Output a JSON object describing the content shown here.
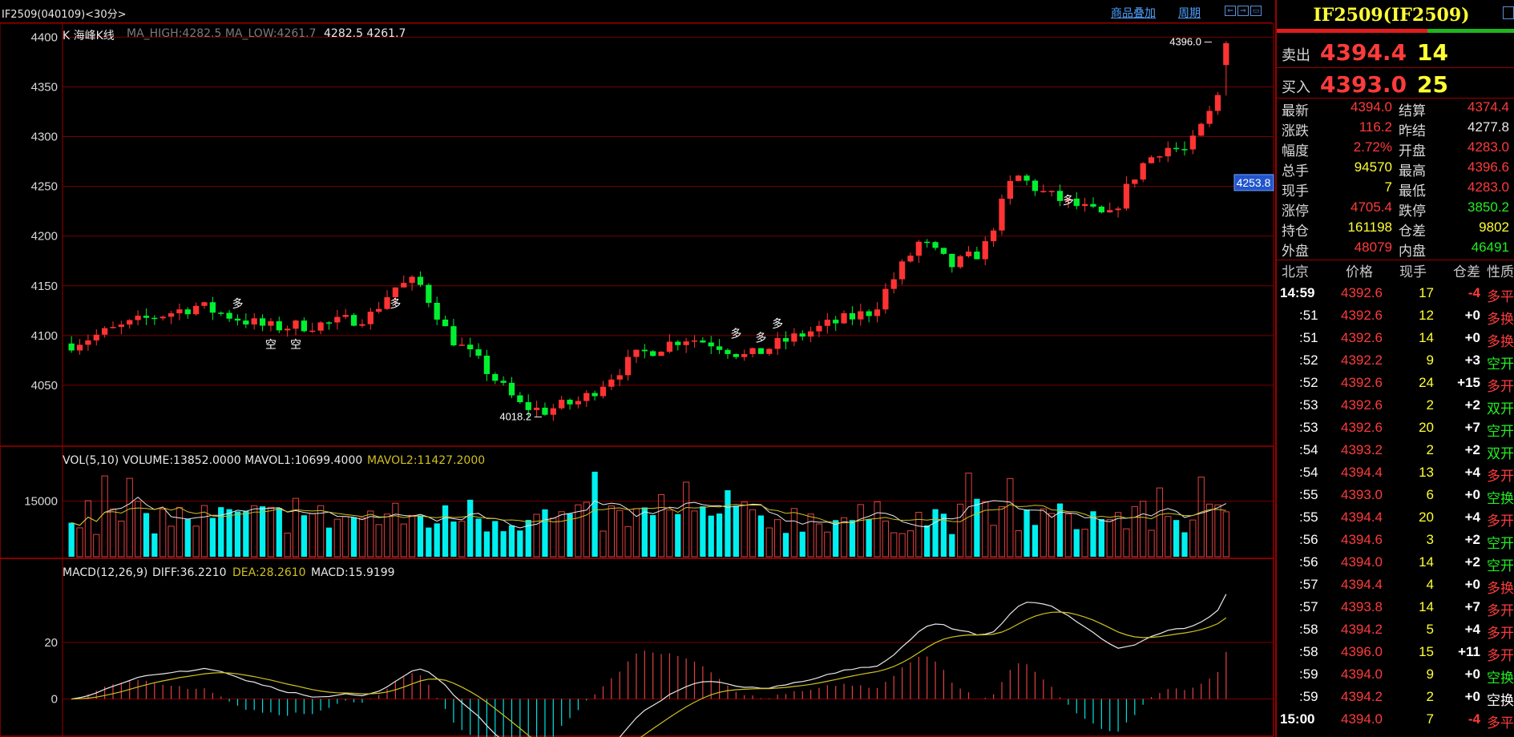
{
  "window": {
    "title": "IF2509(040109)<30分>",
    "links": [
      "商品叠加",
      "周期"
    ],
    "nav_icons": [
      "arrow-left-icon",
      "arrow-right-icon",
      "layout-icon"
    ]
  },
  "chart": {
    "ma_label": "K  海峰K线",
    "ma_values": "MA_HIGH:4282.5 MA_LOW:4261.7",
    "ma_nums": "4282.5 4261.7",
    "y_ticks": [
      "4400",
      "4350",
      "4300",
      "4250",
      "4200",
      "4150",
      "4100",
      "4050"
    ],
    "high_label": "4396.0",
    "low_label": "4018.2",
    "current_price_tag": "4253.8",
    "signals": [
      "多",
      "空",
      "空",
      "多",
      "多",
      "多",
      "多",
      "多"
    ],
    "vol_label": "VOL(5,10) VOLUME:13852.0000 MAVOL1:10699.4000",
    "vol_ma2": "MAVOL2:11427.2000",
    "vol_ticks": [
      "15000"
    ],
    "macd_label": "MACD(12,26,9)",
    "macd_diff": "DIFF:36.2210",
    "macd_dea": "DEA:28.2610",
    "macd_val": "MACD:15.9199",
    "macd_ticks": [
      "20",
      "0"
    ],
    "colors": {
      "up": "#ff3333",
      "down": "#00f0f0",
      "ma_high": "#e8e8e8",
      "ma_low": "#d0c020",
      "grid": "#7a0000"
    }
  },
  "chart_data": {
    "type": "candlestick",
    "price_axis": {
      "ylim": [
        4000,
        4410
      ],
      "ticks": [
        4050,
        4100,
        4150,
        4200,
        4250,
        4300,
        4350,
        4400
      ]
    },
    "volume_axis": {
      "ticks": [
        15000
      ]
    },
    "macd_axis": {
      "ticks": [
        0,
        20
      ]
    },
    "annotations": {
      "high": 4396.0,
      "low": 4018.2,
      "current": 4253.8
    }
  },
  "quote": {
    "symbol": "IF2509(IF2509)",
    "sell_label": "卖出",
    "sell_price": "4394.4",
    "sell_vol": "14",
    "buy_label": "买入",
    "buy_price": "4393.0",
    "buy_vol": "25",
    "stats": [
      {
        "l1": "最新",
        "v1": "4394.0",
        "c1": "#ff3b3b",
        "l2": "结算",
        "v2": "4374.4",
        "c2": "#ff3b3b"
      },
      {
        "l1": "涨跌",
        "v1": "116.2",
        "c1": "#ff3b3b",
        "l2": "昨结",
        "v2": "4277.8",
        "c2": "#e8e8e8"
      },
      {
        "l1": "幅度",
        "v1": "2.72%",
        "c1": "#ff3b3b",
        "l2": "开盘",
        "v2": "4283.0",
        "c2": "#ff3b3b"
      },
      {
        "l1": "总手",
        "v1": "94570",
        "c1": "#ffff33",
        "l2": "最高",
        "v2": "4396.6",
        "c2": "#ff3b3b"
      },
      {
        "l1": "现手",
        "v1": "7",
        "c1": "#ffff33",
        "l2": "最低",
        "v2": "4283.0",
        "c2": "#ff3b3b"
      },
      {
        "l1": "涨停",
        "v1": "4705.4",
        "c1": "#ff3b3b",
        "l2": "跌停",
        "v2": "3850.2",
        "c2": "#22ee22"
      },
      {
        "l1": "持仓",
        "v1": "161198",
        "c1": "#ffff33",
        "l2": "仓差",
        "v2": "9802",
        "c2": "#ffff33"
      },
      {
        "l1": "外盘",
        "v1": "48079",
        "c1": "#ff3b3b",
        "l2": "内盘",
        "v2": "46491",
        "c2": "#22ee22"
      }
    ],
    "tick_headers": [
      "北京",
      "价格",
      "现手",
      "仓差",
      "性质"
    ],
    "ticks": [
      {
        "t": "14:59",
        "p": "4392.6",
        "v": "17",
        "d": "-4",
        "n": "多平",
        "dc": "#ff3b3b",
        "nc": "#ff3b3b"
      },
      {
        "t": ":51",
        "p": "4392.6",
        "v": "12",
        "d": "+0",
        "n": "多换",
        "dc": "#ffffff",
        "nc": "#ff3b3b"
      },
      {
        "t": ":51",
        "p": "4392.6",
        "v": "14",
        "d": "+0",
        "n": "多换",
        "dc": "#ffffff",
        "nc": "#ff3b3b"
      },
      {
        "t": ":52",
        "p": "4392.2",
        "v": "9",
        "d": "+3",
        "n": "空开",
        "dc": "#ffffff",
        "nc": "#22ee22"
      },
      {
        "t": ":52",
        "p": "4392.6",
        "v": "24",
        "d": "+15",
        "n": "多开",
        "dc": "#ffffff",
        "nc": "#ff3b3b"
      },
      {
        "t": ":53",
        "p": "4392.6",
        "v": "2",
        "d": "+2",
        "n": "双开",
        "dc": "#ffffff",
        "nc": "#22ee22"
      },
      {
        "t": ":53",
        "p": "4392.6",
        "v": "20",
        "d": "+7",
        "n": "空开",
        "dc": "#ffffff",
        "nc": "#22ee22"
      },
      {
        "t": ":54",
        "p": "4393.2",
        "v": "2",
        "d": "+2",
        "n": "双开",
        "dc": "#ffffff",
        "nc": "#22ee22"
      },
      {
        "t": ":54",
        "p": "4394.4",
        "v": "13",
        "d": "+4",
        "n": "多开",
        "dc": "#ffffff",
        "nc": "#ff3b3b"
      },
      {
        "t": ":55",
        "p": "4393.0",
        "v": "6",
        "d": "+0",
        "n": "空换",
        "dc": "#ffffff",
        "nc": "#22ee22"
      },
      {
        "t": ":55",
        "p": "4394.4",
        "v": "20",
        "d": "+4",
        "n": "多开",
        "dc": "#ffffff",
        "nc": "#ff3b3b"
      },
      {
        "t": ":56",
        "p": "4394.6",
        "v": "3",
        "d": "+2",
        "n": "空开",
        "dc": "#ffffff",
        "nc": "#22ee22"
      },
      {
        "t": ":56",
        "p": "4394.0",
        "v": "14",
        "d": "+2",
        "n": "空开",
        "dc": "#ffffff",
        "nc": "#22ee22"
      },
      {
        "t": ":57",
        "p": "4394.4",
        "v": "4",
        "d": "+0",
        "n": "多换",
        "dc": "#ffffff",
        "nc": "#ff3b3b"
      },
      {
        "t": ":57",
        "p": "4393.8",
        "v": "14",
        "d": "+7",
        "n": "多开",
        "dc": "#ffffff",
        "nc": "#ff3b3b"
      },
      {
        "t": ":58",
        "p": "4394.2",
        "v": "5",
        "d": "+4",
        "n": "多开",
        "dc": "#ffffff",
        "nc": "#ff3b3b"
      },
      {
        "t": ":58",
        "p": "4396.0",
        "v": "15",
        "d": "+11",
        "n": "多开",
        "dc": "#ffffff",
        "nc": "#ff3b3b"
      },
      {
        "t": ":59",
        "p": "4394.0",
        "v": "9",
        "d": "+0",
        "n": "空换",
        "dc": "#ffffff",
        "nc": "#22ee22"
      },
      {
        "t": ":59",
        "p": "4394.2",
        "v": "2",
        "d": "+0",
        "n": "空换",
        "dc": "#ffffff",
        "nc": "#ffffff"
      },
      {
        "t": "15:00",
        "p": "4394.0",
        "v": "7",
        "d": "-4",
        "n": "多平",
        "dc": "#ff3b3b",
        "nc": "#ff3b3b"
      }
    ]
  }
}
